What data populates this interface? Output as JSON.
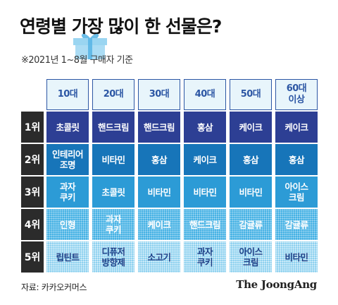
{
  "title": "연령별 가장 많이 한 선물은?",
  "subtitle": "※2021년 1~8월 구매자 기준",
  "table": {
    "columns": [
      "10대",
      "20대",
      "30대",
      "40대",
      "50대",
      "60대\n이상"
    ],
    "rows": [
      {
        "rank": "1위",
        "cells": [
          "초콜릿",
          "핸드크림",
          "핸드크림",
          "홍삼",
          "케이크",
          "케이크"
        ]
      },
      {
        "rank": "2위",
        "cells": [
          "인테리어\n조명",
          "비타민",
          "홍삼",
          "케이크",
          "홍삼",
          "홍삼"
        ]
      },
      {
        "rank": "3위",
        "cells": [
          "과자\n쿠키",
          "초콜릿",
          "비타민",
          "비타민",
          "비타민",
          "아이스\n크림"
        ]
      },
      {
        "rank": "4위",
        "cells": [
          "인형",
          "과자\n쿠키",
          "케이크",
          "핸드크림",
          "감귤류",
          "감귤류"
        ]
      },
      {
        "rank": "5위",
        "cells": [
          "립틴트",
          "디퓨저\n방향제",
          "소고기",
          "과자\n쿠키",
          "아이스\n크림",
          "비타민"
        ]
      }
    ]
  },
  "source": "자료: 카카오커머스",
  "brand": "The JoongAng",
  "colors": {
    "rank1": "#2d3f94",
    "rank2": "#1775b9",
    "rank3": "#2c9bd6",
    "rank4": "#46b2e4",
    "rank5": "#8ed1ef",
    "header_text": "#2c56a4"
  },
  "icons": [
    "gift-box-icon"
  ]
}
